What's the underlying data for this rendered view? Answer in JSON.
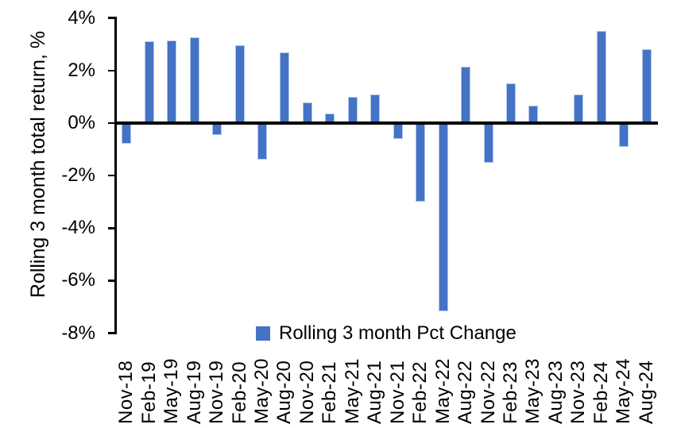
{
  "chart_data": {
    "type": "bar",
    "title": "",
    "xlabel": "",
    "ylabel": "Rolling 3 month total return, %",
    "ylim": [
      -8,
      4
    ],
    "ytick_values": [
      4,
      2,
      0,
      -2,
      -4,
      -6,
      -8
    ],
    "ytick_labels": [
      "4%",
      "2%",
      "0%",
      "-2%",
      "-4%",
      "-6%",
      "-8%"
    ],
    "grid": false,
    "legend_position": "inside-bottom-center",
    "categories": [
      "Nov-18",
      "Feb-19",
      "May-19",
      "Aug-19",
      "Nov-19",
      "Feb-20",
      "May-20",
      "Aug-20",
      "Nov-20",
      "Feb-21",
      "May-21",
      "Aug-21",
      "Nov-21",
      "Feb-22",
      "May-22",
      "Aug-22",
      "Nov-22",
      "Feb-23",
      "May-23",
      "Aug-23",
      "Nov-23",
      "Feb-24",
      "May-24",
      "Aug-24"
    ],
    "series": [
      {
        "name": "Rolling 3 month Pct Change",
        "values": [
          -0.8,
          3.1,
          3.15,
          3.25,
          -0.45,
          2.95,
          -1.4,
          2.7,
          0.8,
          0.35,
          1.0,
          1.1,
          -0.6,
          -3.0,
          -7.15,
          2.15,
          -1.5,
          1.5,
          0.65,
          0.0,
          1.1,
          3.5,
          -0.9,
          2.8
        ]
      }
    ],
    "colors": {
      "bar_fill": "#4472C4",
      "bar_border": "#adc6ee",
      "axis": "#000000",
      "text": "#000000",
      "background": "#ffffff"
    }
  }
}
